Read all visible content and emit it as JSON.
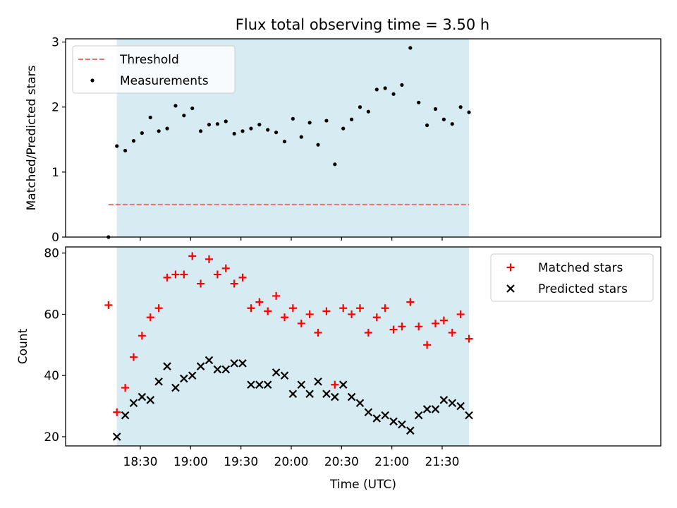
{
  "title": "Flux total observing time = 3.50 h",
  "colors": {
    "background": "#ffffff",
    "span": "#add8e6",
    "threshold": "#f07070",
    "measurement": "#000000",
    "matched": "#ff0000",
    "predicted": "#000000"
  },
  "chart_data": [
    {
      "type": "scatter",
      "ylabel": "Matched/Predicted stars",
      "xlabel": "",
      "ylim": [
        0,
        3.05
      ],
      "yticks": [
        0,
        1,
        2,
        3
      ],
      "show_x_tick_labels": false,
      "shaded_span": [
        "18:16",
        "21:46"
      ],
      "threshold": {
        "name": "Threshold",
        "value": 0.5,
        "x_range": [
          "18:11",
          "21:46"
        ]
      },
      "legend": {
        "position": "upper-left",
        "entries": [
          "Threshold",
          "Measurements"
        ]
      },
      "series": [
        {
          "name": "Measurements",
          "marker": "dot",
          "x": [
            "18:11",
            "18:16",
            "18:21",
            "18:26",
            "18:31",
            "18:36",
            "18:41",
            "18:46",
            "18:51",
            "18:56",
            "19:01",
            "19:06",
            "19:11",
            "19:16",
            "19:21",
            "19:26",
            "19:31",
            "19:36",
            "19:41",
            "19:46",
            "19:51",
            "19:56",
            "20:01",
            "20:06",
            "20:11",
            "20:16",
            "20:21",
            "20:26",
            "20:31",
            "20:36",
            "20:41",
            "20:46",
            "20:51",
            "20:56",
            "21:01",
            "21:06",
            "21:11",
            "21:16",
            "21:21",
            "21:26",
            "21:31",
            "21:36",
            "21:41",
            "21:46"
          ],
          "y": [
            0.0,
            1.4,
            1.33,
            1.48,
            1.6,
            1.84,
            1.63,
            1.67,
            2.02,
            1.87,
            1.98,
            1.63,
            1.73,
            1.74,
            1.78,
            1.59,
            1.63,
            1.67,
            1.73,
            1.65,
            1.61,
            1.47,
            1.82,
            1.54,
            1.76,
            1.42,
            1.79,
            1.12,
            1.67,
            1.81,
            2.0,
            1.93,
            2.27,
            2.29,
            2.2,
            2.34,
            2.91,
            2.07,
            1.72,
            1.97,
            1.81,
            1.74,
            2.0,
            1.92
          ]
        }
      ]
    },
    {
      "type": "scatter",
      "ylabel": "Count",
      "xlabel": "Time (UTC)",
      "ylim": [
        17,
        82
      ],
      "yticks": [
        20,
        40,
        60,
        80
      ],
      "xticks": [
        "18:30",
        "19:00",
        "19:30",
        "20:00",
        "20:30",
        "21:00",
        "21:30"
      ],
      "shaded_span": [
        "18:16",
        "21:46"
      ],
      "legend": {
        "position": "upper-right",
        "entries": [
          "Matched stars",
          "Predicted stars"
        ]
      },
      "series": [
        {
          "name": "Matched stars",
          "marker": "plus",
          "x": [
            "18:11",
            "18:16",
            "18:21",
            "18:26",
            "18:31",
            "18:36",
            "18:41",
            "18:46",
            "18:51",
            "18:56",
            "19:01",
            "19:06",
            "19:11",
            "19:16",
            "19:21",
            "19:26",
            "19:31",
            "19:36",
            "19:41",
            "19:46",
            "19:51",
            "19:56",
            "20:01",
            "20:06",
            "20:11",
            "20:16",
            "20:21",
            "20:26",
            "20:31",
            "20:36",
            "20:41",
            "20:46",
            "20:51",
            "20:56",
            "21:01",
            "21:06",
            "21:11",
            "21:16",
            "21:21",
            "21:26",
            "21:31",
            "21:36",
            "21:41",
            "21:46"
          ],
          "y": [
            63,
            28,
            36,
            46,
            53,
            59,
            62,
            72,
            73,
            73,
            79,
            70,
            78,
            73,
            75,
            70,
            72,
            62,
            64,
            61,
            66,
            59,
            62,
            57,
            60,
            54,
            61,
            37,
            62,
            60,
            62,
            54,
            59,
            62,
            55,
            56,
            64,
            56,
            50,
            57,
            58,
            54,
            60,
            52
          ]
        },
        {
          "name": "Predicted stars",
          "marker": "x",
          "x": [
            "18:16",
            "18:21",
            "18:26",
            "18:31",
            "18:36",
            "18:41",
            "18:46",
            "18:51",
            "18:56",
            "19:01",
            "19:06",
            "19:11",
            "19:16",
            "19:21",
            "19:26",
            "19:31",
            "19:36",
            "19:41",
            "19:46",
            "19:51",
            "19:56",
            "20:01",
            "20:06",
            "20:11",
            "20:16",
            "20:21",
            "20:26",
            "20:31",
            "20:36",
            "20:41",
            "20:46",
            "20:51",
            "20:56",
            "21:01",
            "21:06",
            "21:11",
            "21:16",
            "21:21",
            "21:26",
            "21:31",
            "21:36",
            "21:41",
            "21:46"
          ],
          "y": [
            20,
            27,
            31,
            33,
            32,
            38,
            43,
            36,
            39,
            40,
            43,
            45,
            42,
            42,
            44,
            44,
            37,
            37,
            37,
            41,
            40,
            34,
            37,
            34,
            38,
            34,
            33,
            37,
            33,
            31,
            28,
            26,
            27,
            25,
            24,
            22,
            27,
            29,
            29,
            32,
            31,
            30,
            27
          ]
        }
      ]
    }
  ]
}
